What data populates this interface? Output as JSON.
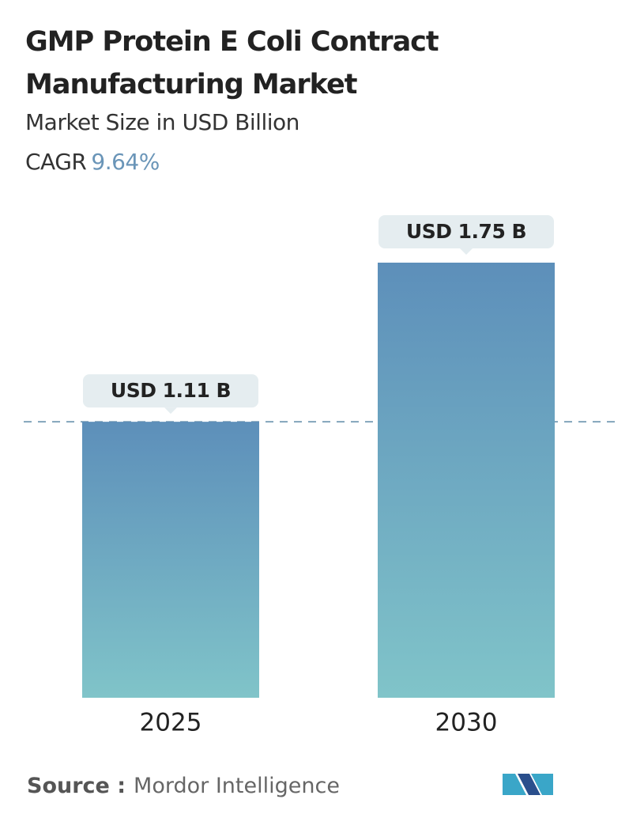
{
  "chart_data": {
    "type": "bar",
    "title": "GMP Protein E Coli Contract Manufacturing Market",
    "subtitle": "Market Size in USD Billion",
    "cagr_label": "CAGR",
    "cagr_value": "9.64%",
    "categories": [
      "2025",
      "2030"
    ],
    "values": [
      1.11,
      1.75
    ],
    "value_labels": [
      "USD 1.11 B",
      "USD 1.75 B"
    ],
    "gradient": [
      "#5d8fba",
      "#80c4c9"
    ],
    "reference_line": true,
    "source_label": "Source :",
    "source": "Mordor Intelligence"
  }
}
